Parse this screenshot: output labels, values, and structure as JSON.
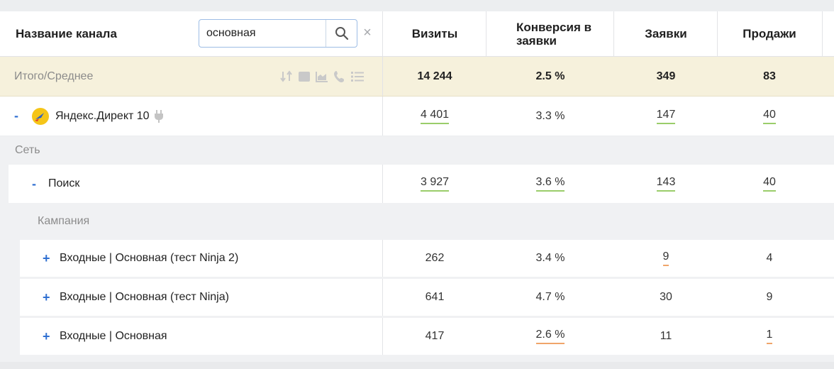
{
  "header": {
    "channel_label": "Название канала",
    "search_value": "основная",
    "columns": [
      "Визиты",
      "Конверсия в заявки",
      "Заявки",
      "Продажи"
    ]
  },
  "totals": {
    "label": "Итого/Среднее",
    "values": [
      "14 244",
      "2.5 %",
      "349",
      "83"
    ]
  },
  "rows": {
    "yandex": {
      "toggle": "-",
      "name": "Яндекс.Директ 10",
      "values": [
        "4 401",
        "3.3 %",
        "147",
        "40"
      ]
    },
    "group_set": "Сеть",
    "poisk": {
      "toggle": "-",
      "name": "Поиск",
      "values": [
        "3 927",
        "3.6 %",
        "143",
        "40"
      ]
    },
    "group_campaign": "Кампания",
    "campaigns": [
      {
        "toggle": "+",
        "name": "Входные | Основная (тест Ninja 2)",
        "values": [
          "262",
          "3.4 %",
          "9",
          "4"
        ]
      },
      {
        "toggle": "+",
        "name": "Входные | Основная (тест Ninja)",
        "values": [
          "641",
          "4.7 %",
          "30",
          "9"
        ]
      },
      {
        "toggle": "+",
        "name": "Входные | Основная",
        "values": [
          "417",
          "2.6 %",
          "11",
          "1"
        ]
      }
    ]
  },
  "colors": {
    "accent": "#2f6fd1",
    "totals_bg": "#f6f1dc",
    "underline_green": "#9acd6a",
    "underline_orange": "#f0a56a"
  },
  "icons": {
    "totals_toolbar": [
      "sort-icon",
      "square-icon",
      "area-chart-icon",
      "phone-icon",
      "list-icon"
    ],
    "yandex": "yandex-direct-icon",
    "plug": "plug-icon",
    "search": "search-icon",
    "close": "close-icon"
  }
}
